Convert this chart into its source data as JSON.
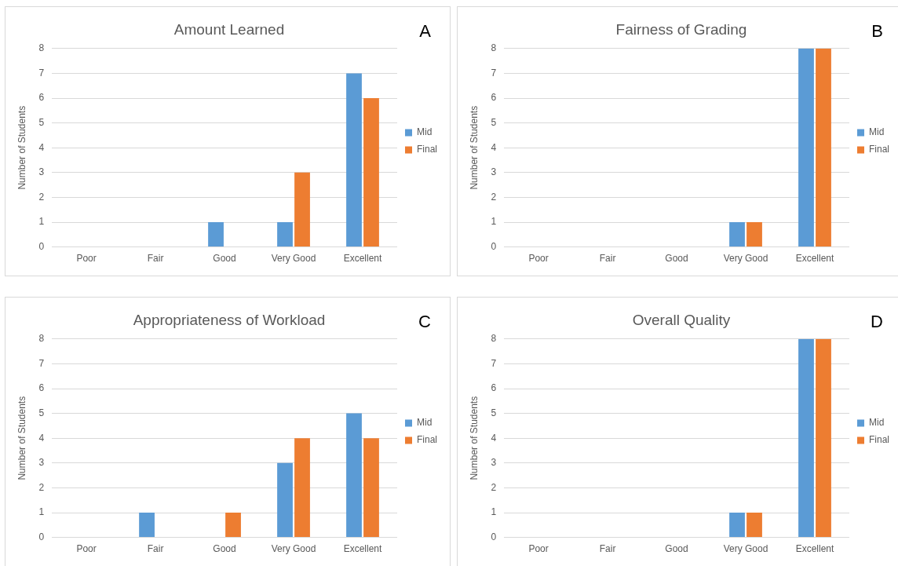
{
  "chart_data": [
    {
      "type": "bar",
      "title": "Amount Learned",
      "ylabel": "Number of Students",
      "annotations": [
        "A"
      ],
      "categories": [
        "Poor",
        "Fair",
        "Good",
        "Very Good",
        "Excellent"
      ],
      "ylim": [
        0,
        8
      ],
      "yticks": [
        0,
        1,
        2,
        3,
        4,
        5,
        6,
        7,
        8
      ],
      "grid": "y",
      "legend": "right",
      "series": [
        {
          "name": "Mid",
          "color": "#5b9bd5",
          "values": [
            0,
            0,
            1,
            1,
            7
          ]
        },
        {
          "name": "Final",
          "color": "#ed7d31",
          "values": [
            0,
            0,
            0,
            3,
            6
          ]
        }
      ]
    },
    {
      "type": "bar",
      "title": "Fairness of Grading",
      "ylabel": "Number of Students",
      "annotations": [
        "B"
      ],
      "categories": [
        "Poor",
        "Fair",
        "Good",
        "Very Good",
        "Excellent"
      ],
      "ylim": [
        0,
        8
      ],
      "yticks": [
        0,
        1,
        2,
        3,
        4,
        5,
        6,
        7,
        8
      ],
      "grid": "y",
      "legend": "right",
      "series": [
        {
          "name": "Mid",
          "color": "#5b9bd5",
          "values": [
            0,
            0,
            0,
            1,
            8
          ]
        },
        {
          "name": "Final",
          "color": "#ed7d31",
          "values": [
            0,
            0,
            0,
            1,
            8
          ]
        }
      ]
    },
    {
      "type": "bar",
      "title": "Appropriateness of Workload",
      "ylabel": "Number of Students",
      "annotations": [
        "C"
      ],
      "categories": [
        "Poor",
        "Fair",
        "Good",
        "Very Good",
        "Excellent"
      ],
      "ylim": [
        0,
        8
      ],
      "yticks": [
        0,
        1,
        2,
        3,
        4,
        5,
        6,
        7,
        8
      ],
      "grid": "y",
      "legend": "right",
      "series": [
        {
          "name": "Mid",
          "color": "#5b9bd5",
          "values": [
            0,
            1,
            0,
            3,
            5
          ]
        },
        {
          "name": "Final",
          "color": "#ed7d31",
          "values": [
            0,
            0,
            1,
            4,
            4
          ]
        }
      ]
    },
    {
      "type": "bar",
      "title": "Overall Quality",
      "ylabel": "Number of Students",
      "annotations": [
        "D"
      ],
      "categories": [
        "Poor",
        "Fair",
        "Good",
        "Very Good",
        "Excellent"
      ],
      "ylim": [
        0,
        8
      ],
      "yticks": [
        0,
        1,
        2,
        3,
        4,
        5,
        6,
        7,
        8
      ],
      "grid": "y",
      "legend": "right",
      "series": [
        {
          "name": "Mid",
          "color": "#5b9bd5",
          "values": [
            0,
            0,
            0,
            1,
            8
          ]
        },
        {
          "name": "Final",
          "color": "#ed7d31",
          "values": [
            0,
            0,
            0,
            1,
            8
          ]
        }
      ]
    }
  ]
}
